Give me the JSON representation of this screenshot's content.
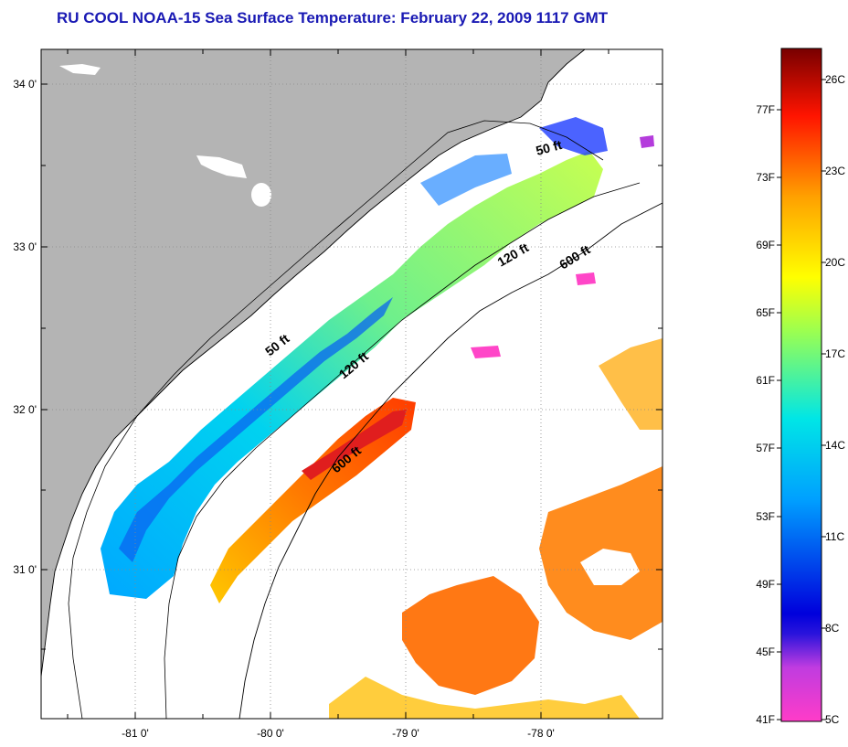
{
  "title": "RU COOL  NOAA-15  Sea Surface Temperature:  February 22, 2009 1117 GMT",
  "map": {
    "lat_labels": [
      "34 0'",
      "33 0'",
      "32 0'",
      "31 0'"
    ],
    "lon_labels": [
      "-81 0'",
      "-80 0'",
      "-79 0'",
      "-78 0'"
    ],
    "isobath_labels": [
      "50 ft",
      "120 ft",
      "600 ft",
      "50 ft",
      "120 ft",
      "600 ft"
    ],
    "colors": {
      "land": "#b4b4b4",
      "ocean_nodata": "#ffffff",
      "coastline": "#000000"
    }
  },
  "colorbar": {
    "fahrenheit_labels": [
      "77F",
      "73F",
      "69F",
      "65F",
      "61F",
      "57F",
      "53F",
      "49F",
      "45F",
      "41F"
    ],
    "celsius_labels": [
      "26C",
      "23C",
      "20C",
      "17C",
      "14C",
      "11C",
      "8C",
      "5C"
    ],
    "colors": [
      "#ff3cc8",
      "#b43cdc",
      "#0000dc",
      "#0078ff",
      "#00dcff",
      "#78ff78",
      "#ffff00",
      "#ff9600",
      "#ff0000",
      "#780000"
    ]
  }
}
